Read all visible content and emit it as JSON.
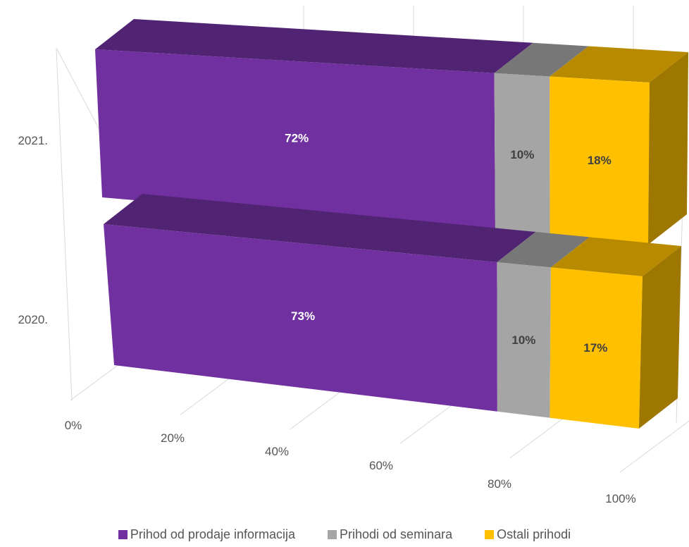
{
  "chart_data": {
    "type": "bar",
    "orientation": "horizontal",
    "stacked": "percent",
    "style": "3d",
    "categories": [
      "2021.",
      "2020."
    ],
    "series": [
      {
        "name": "Prihod od prodaje informacija",
        "color": "#7030A0",
        "values": [
          72,
          73
        ],
        "labels": [
          "72%",
          "73%"
        ],
        "label_color": "#ffffff"
      },
      {
        "name": "Prihodi od seminara",
        "color": "#A5A5A5",
        "values": [
          10,
          10
        ],
        "labels": [
          "10%",
          "10%"
        ],
        "label_color": "#404040"
      },
      {
        "name": "Ostali prihodi",
        "color": "#FFC000",
        "values": [
          18,
          17
        ],
        "labels": [
          "18%",
          "17%"
        ],
        "label_color": "#404040"
      }
    ],
    "x_ticks": [
      "0%",
      "20%",
      "40%",
      "60%",
      "80%",
      "100%"
    ],
    "xlim": [
      0,
      100
    ],
    "legend": "bottom",
    "grid": true
  }
}
